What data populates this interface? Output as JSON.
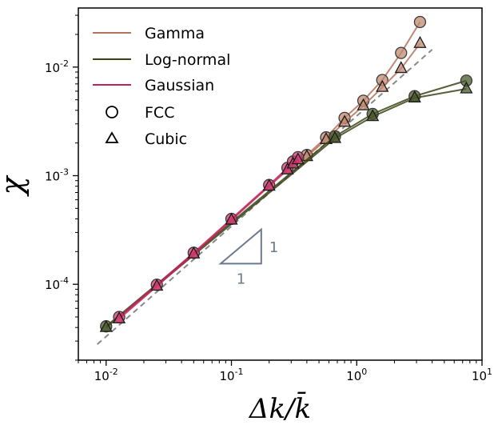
{
  "chart_data": {
    "type": "line",
    "xlabel": "Δk/k̄",
    "ylabel": "χ",
    "xscale": "log",
    "yscale": "log",
    "xlim": [
      0.006,
      10
    ],
    "ylim": [
      2e-05,
      0.035
    ],
    "x_ticks": [
      {
        "value": 0.01,
        "base": "10",
        "exp": "-2"
      },
      {
        "value": 0.1,
        "base": "10",
        "exp": "-1"
      },
      {
        "value": 1,
        "base": "10",
        "exp": "0"
      },
      {
        "value": 10,
        "base": "10",
        "exp": "1"
      }
    ],
    "y_ticks": [
      {
        "value": 0.0001,
        "base": "10",
        "exp": "-4"
      },
      {
        "value": 0.001,
        "base": "10",
        "exp": "-3"
      },
      {
        "value": 0.01,
        "base": "10",
        "exp": "-2"
      }
    ],
    "grid": false,
    "legend_position": "top-left",
    "legend": [
      {
        "label": "Gamma",
        "kind": "line",
        "color": "#b5735a"
      },
      {
        "label": "Log-normal",
        "kind": "line",
        "color": "#3b4416"
      },
      {
        "label": "Gaussian",
        "kind": "line",
        "color": "#c0245a"
      },
      {
        "label": "FCC",
        "kind": "circle"
      },
      {
        "label": "Cubic",
        "kind": "triangle"
      }
    ],
    "series": [
      {
        "name": "Gamma",
        "marker": "circle",
        "color": "#c08a72",
        "x": [
          0.4,
          0.57,
          0.8,
          1.13,
          1.6,
          2.26,
          3.2
        ],
        "y": [
          0.00155,
          0.00225,
          0.0034,
          0.0049,
          0.0076,
          0.0135,
          0.026
        ]
      },
      {
        "name": "Gamma",
        "marker": "triangle",
        "color": "#c08a72",
        "x": [
          0.4,
          0.57,
          0.8,
          1.13,
          1.6,
          2.26,
          3.2
        ],
        "y": [
          0.0015,
          0.00215,
          0.0031,
          0.0044,
          0.0065,
          0.0097,
          0.0165
        ]
      },
      {
        "name": "Log-normal",
        "marker": "circle",
        "color": "#4a5a2a",
        "x": [
          0.01,
          0.67,
          1.34,
          2.9,
          7.5
        ],
        "y": [
          4.1e-05,
          0.0023,
          0.0037,
          0.0054,
          0.0075
        ]
      },
      {
        "name": "Log-normal",
        "marker": "triangle",
        "color": "#4a5a2a",
        "x": [
          0.01,
          0.67,
          1.34,
          2.9,
          7.5
        ],
        "y": [
          4e-05,
          0.0022,
          0.0035,
          0.0052,
          0.0063
        ]
      },
      {
        "name": "Gaussian",
        "marker": "circle",
        "color": "#cf3c6e",
        "x": [
          0.0127,
          0.0254,
          0.05,
          0.1,
          0.2,
          0.28,
          0.31,
          0.34
        ],
        "y": [
          5e-05,
          9.9e-05,
          0.000195,
          0.0004,
          0.00082,
          0.00118,
          0.00135,
          0.00148
        ]
      },
      {
        "name": "Gaussian",
        "marker": "triangle",
        "color": "#cf3c6e",
        "x": [
          0.0127,
          0.0254,
          0.05,
          0.1,
          0.2,
          0.28,
          0.31,
          0.34
        ],
        "y": [
          4.8e-05,
          9.6e-05,
          0.00019,
          0.00039,
          0.0008,
          0.00113,
          0.00128,
          0.0014
        ]
      }
    ],
    "reference_line": {
      "style": "dashed",
      "color": "#888888",
      "x": [
        0.0085,
        4.0
      ],
      "y": [
        2.8e-05,
        0.0145
      ]
    },
    "slope_triangle": {
      "color": "#6b7a8f",
      "x": [
        0.082,
        0.173
      ],
      "y": [
        0.000155,
        0.00032
      ],
      "run_label": "1",
      "rise_label": "1"
    }
  }
}
